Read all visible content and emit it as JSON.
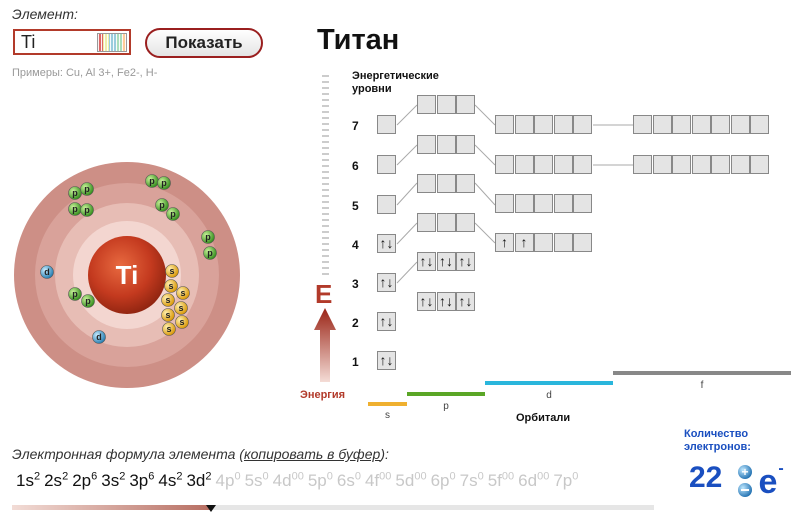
{
  "header": {
    "element_label": "Элемент:",
    "input_value": "Ti",
    "show_button": "Показать",
    "examples": "Примеры: Cu, Al 3+, Fe2-, H-",
    "element_name": "Титан"
  },
  "atom": {
    "symbol": "Ti",
    "colors": {
      "nucleus": "#c43a1f",
      "shell_outer": "#cd8f86",
      "p": "#3aa020",
      "s": "#e5a300",
      "d": "#2a8fc6"
    },
    "electrons": [
      {
        "t": "p",
        "label": "p"
      },
      {
        "t": "p",
        "label": "p"
      },
      {
        "t": "p",
        "label": "p"
      },
      {
        "t": "p",
        "label": "p"
      },
      {
        "t": "p",
        "label": "p"
      },
      {
        "t": "p",
        "label": "p"
      },
      {
        "t": "p",
        "label": "p"
      },
      {
        "t": "p",
        "label": "p"
      },
      {
        "t": "p",
        "label": "p"
      },
      {
        "t": "p",
        "label": "p"
      },
      {
        "t": "p",
        "label": "p"
      },
      {
        "t": "p",
        "label": "p"
      },
      {
        "t": "s",
        "label": "s"
      },
      {
        "t": "s",
        "label": "s"
      },
      {
        "t": "s",
        "label": "s"
      },
      {
        "t": "s",
        "label": "s"
      },
      {
        "t": "s",
        "label": "s"
      },
      {
        "t": "s",
        "label": "s"
      },
      {
        "t": "s",
        "label": "s"
      },
      {
        "t": "s",
        "label": "s"
      },
      {
        "t": "d",
        "label": "d"
      },
      {
        "t": "d",
        "label": "d"
      }
    ]
  },
  "diagram": {
    "levels_title": "Энергетические уровни",
    "levels": [
      "7",
      "6",
      "5",
      "4",
      "3",
      "2",
      "1"
    ],
    "energy_letter": "E",
    "energy_label": "Энергия",
    "orbitals_label": "Орбитали",
    "bars": [
      {
        "label": "s",
        "color": "#efb030"
      },
      {
        "label": "p",
        "color": "#5aa626"
      },
      {
        "label": "d",
        "color": "#2ab6dc"
      },
      {
        "label": "f",
        "color": "#888888"
      }
    ],
    "orbitals": {
      "s1": [
        "↑↓"
      ],
      "s2": [
        "↑↓"
      ],
      "s3": [
        "↑↓"
      ],
      "s4": [
        "↑↓"
      ],
      "s5": [
        ""
      ],
      "s6": [
        ""
      ],
      "s7": [
        ""
      ],
      "p2": [
        "↑↓",
        "↑↓",
        "↑↓"
      ],
      "p3": [
        "↑↓",
        "↑↓",
        "↑↓"
      ],
      "p4": [
        "",
        "",
        ""
      ],
      "p5": [
        "",
        "",
        ""
      ],
      "p6": [
        "",
        "",
        ""
      ],
      "p7": [
        "",
        "",
        ""
      ],
      "d3": [
        "↑",
        "↑",
        "",
        "",
        ""
      ],
      "d4": [
        "",
        "",
        "",
        "",
        ""
      ],
      "d5": [
        "",
        "",
        "",
        "",
        ""
      ],
      "d6": [
        "",
        "",
        "",
        "",
        ""
      ],
      "f4": [
        "",
        "",
        "",
        "",
        "",
        "",
        ""
      ],
      "f5": [
        "",
        "",
        "",
        "",
        "",
        "",
        ""
      ]
    }
  },
  "formula": {
    "label_prefix": "Электронная формула элемента (",
    "label_link": "копировать в буфер",
    "label_suffix": "):",
    "terms": [
      {
        "orb": "1s",
        "sup": "2",
        "filled": true
      },
      {
        "orb": "2s",
        "sup": "2",
        "filled": true
      },
      {
        "orb": "2p",
        "sup": "6",
        "filled": true
      },
      {
        "orb": "3s",
        "sup": "2",
        "filled": true
      },
      {
        "orb": "3p",
        "sup": "6",
        "filled": true
      },
      {
        "orb": "4s",
        "sup": "2",
        "filled": true
      },
      {
        "orb": "3d",
        "sup": "2",
        "filled": true
      },
      {
        "orb": "4p",
        "sup": "0",
        "filled": false
      },
      {
        "orb": "5s",
        "sup": "0",
        "filled": false
      },
      {
        "orb": "4d",
        "sup": "00",
        "filled": false
      },
      {
        "orb": "5p",
        "sup": "0",
        "filled": false
      },
      {
        "orb": "6s",
        "sup": "0",
        "filled": false
      },
      {
        "orb": "4f",
        "sup": "00",
        "filled": false
      },
      {
        "orb": "5d",
        "sup": "00",
        "filled": false
      },
      {
        "orb": "6p",
        "sup": "0",
        "filled": false
      },
      {
        "orb": "7s",
        "sup": "0",
        "filled": false
      },
      {
        "orb": "5f",
        "sup": "00",
        "filled": false
      },
      {
        "orb": "6d",
        "sup": "00",
        "filled": false
      },
      {
        "orb": "7p",
        "sup": "0",
        "filled": false
      }
    ],
    "progress_fraction": 0.31
  },
  "count": {
    "label": "Количество электронов:",
    "value": "22",
    "badge_letter": "e",
    "badge_minus": "-"
  }
}
